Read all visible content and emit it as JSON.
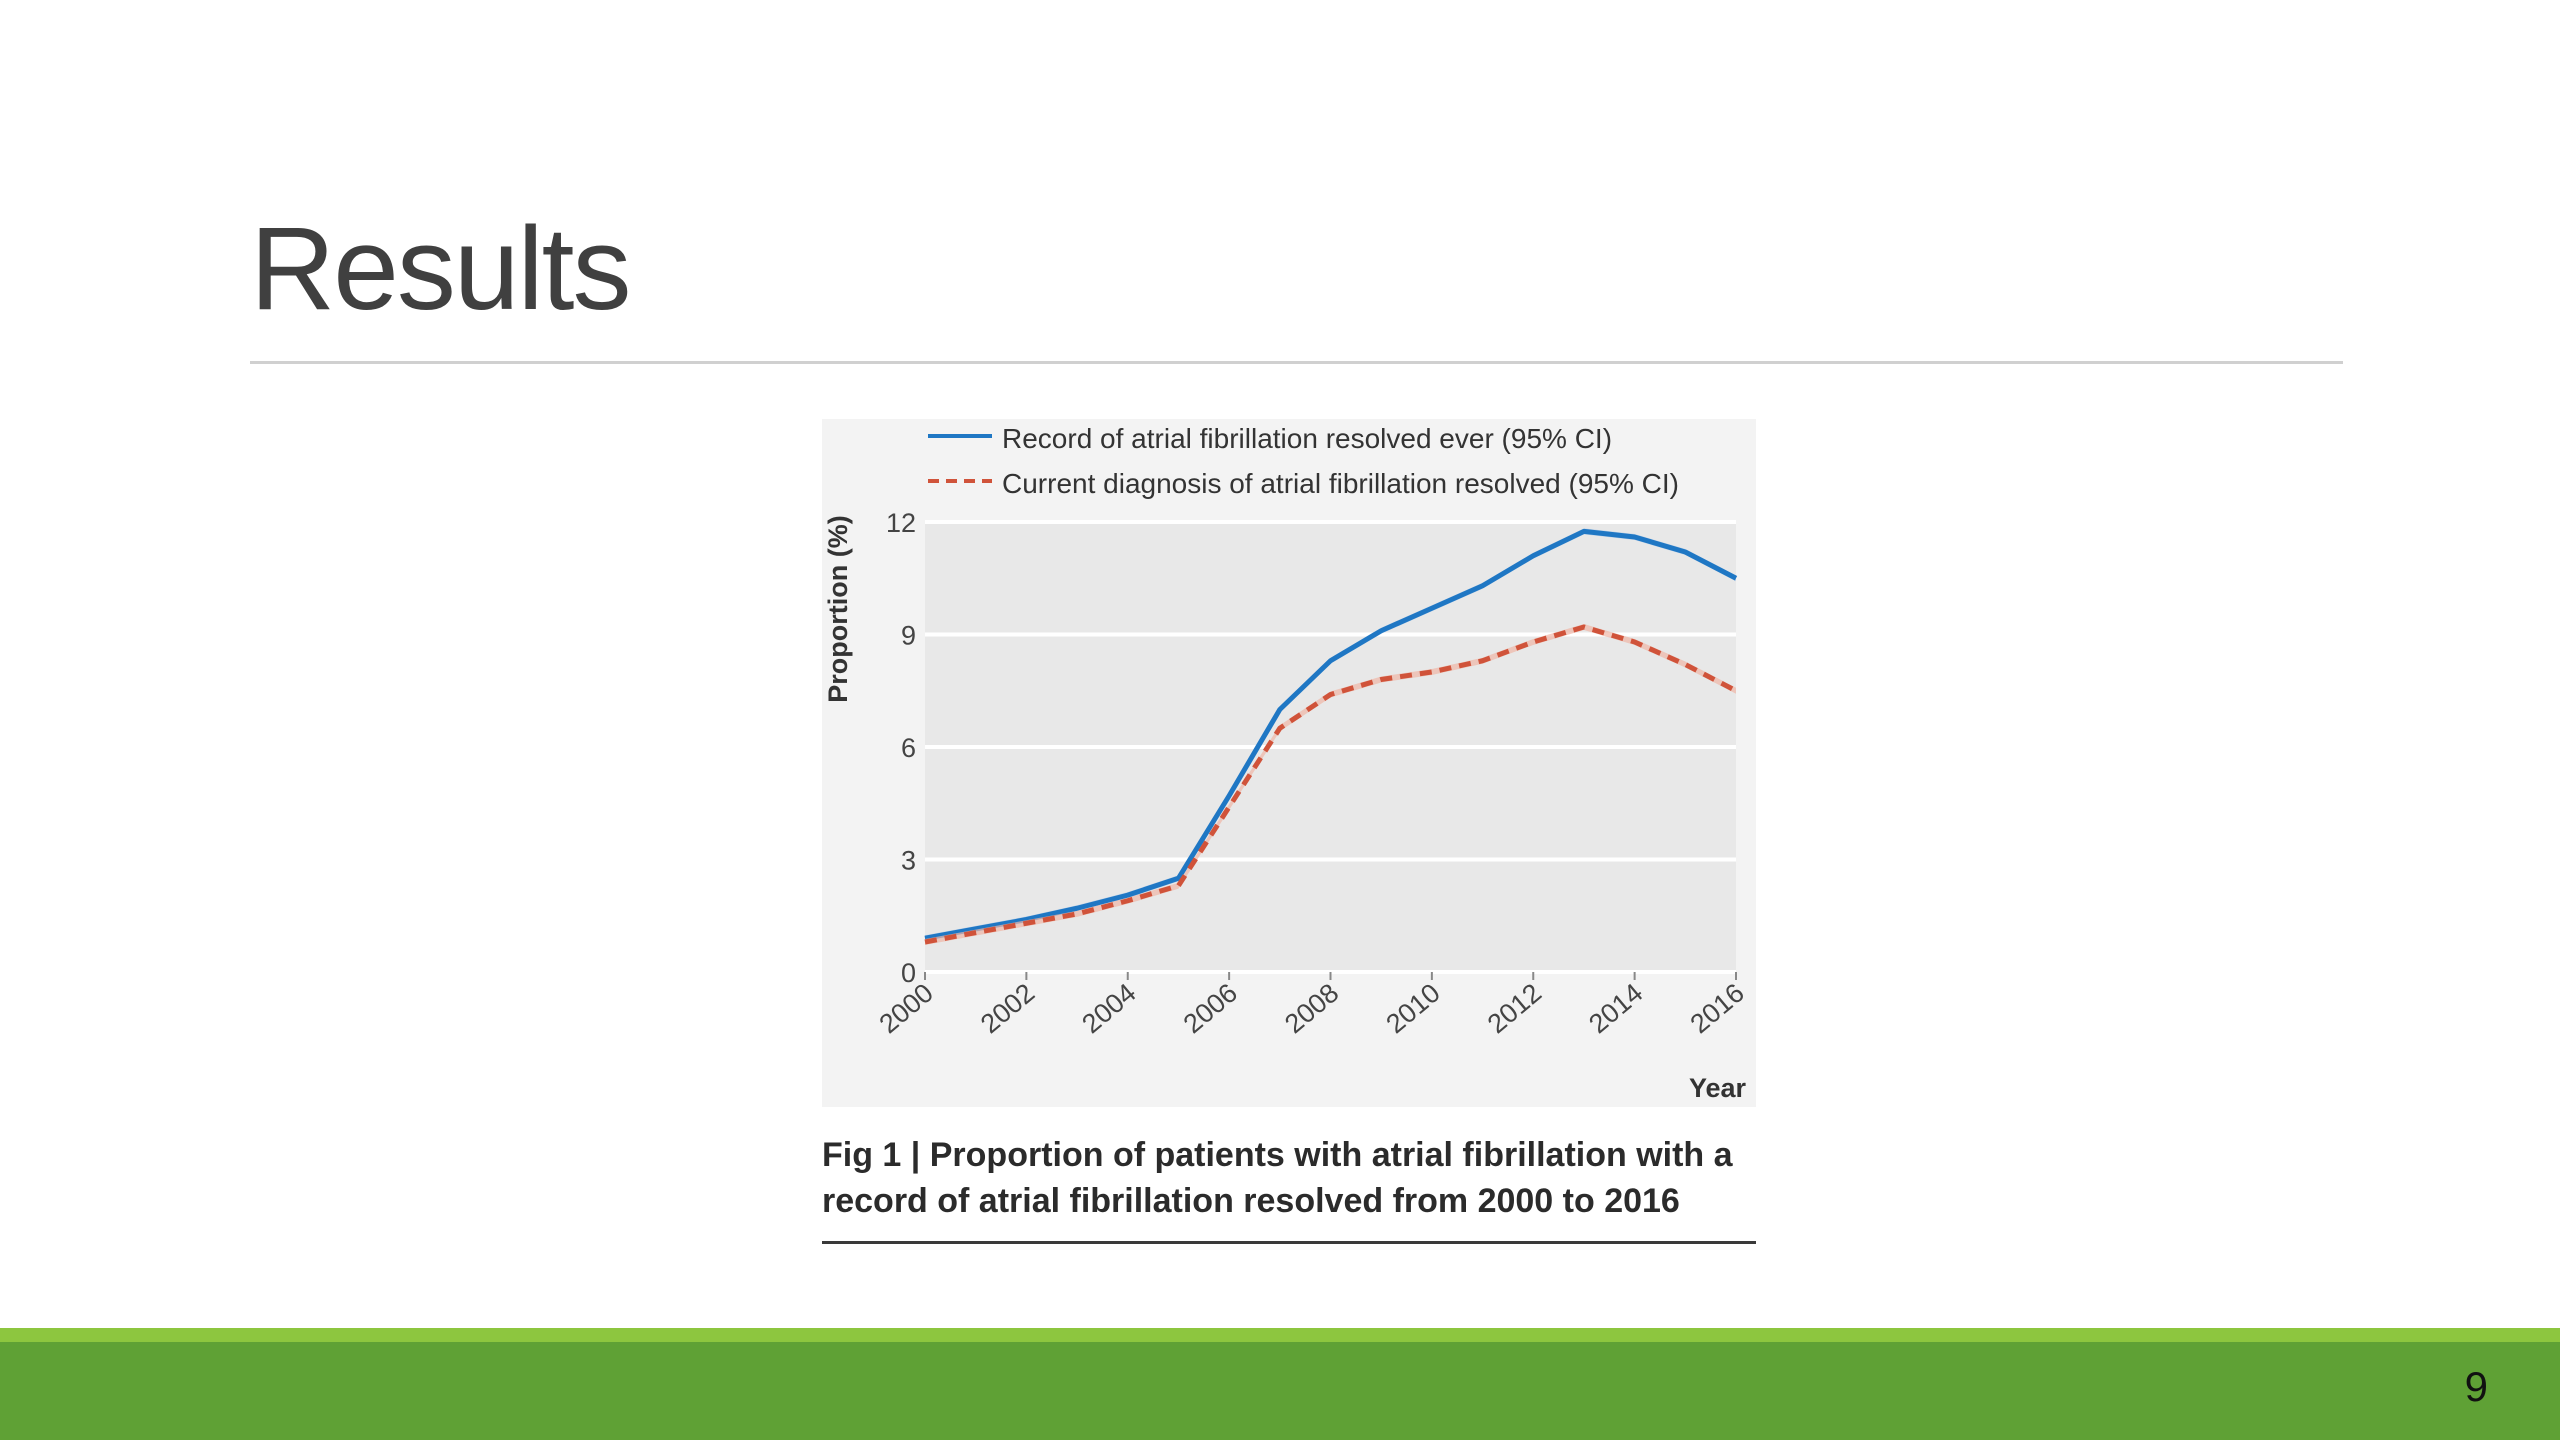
{
  "slide": {
    "title": "Results",
    "page_number": "9",
    "caption_line1": "Fig 1 | Proportion of patients with atrial fibrillation with a",
    "caption_line2": "record of atrial fibrillation resolved from 2000 to 2016"
  },
  "colors": {
    "series_ever": "#1f77c4",
    "series_current": "#d0533a",
    "band_ever": "#a9c8e8",
    "band_current": "#f0b6a6",
    "plot_background": "#e8e8e8",
    "figure_background": "#f3f3f3",
    "footer_light": "#8dc63f",
    "footer_dark": "#5fa135"
  },
  "chart_data": {
    "type": "line",
    "xlabel": "Year",
    "ylabel": "Proportion (%)",
    "xlim": [
      2000,
      2016
    ],
    "ylim": [
      0,
      12
    ],
    "x_ticks": [
      "2000",
      "2002",
      "2004",
      "2006",
      "2008",
      "2010",
      "2012",
      "2014",
      "2016"
    ],
    "y_ticks": [
      "0",
      "3",
      "6",
      "9",
      "12"
    ],
    "grid": "horizontal",
    "legend_position": "top",
    "x": [
      2000,
      2001,
      2002,
      2003,
      2004,
      2005,
      2006,
      2007,
      2008,
      2009,
      2010,
      2011,
      2012,
      2013,
      2014,
      2015,
      2016
    ],
    "series": [
      {
        "name": "Record of atrial fibrillation resolved ever (95% CI)",
        "style": "solid",
        "values": [
          0.9,
          1.15,
          1.4,
          1.7,
          2.05,
          2.5,
          4.7,
          7.0,
          8.3,
          9.1,
          9.7,
          10.3,
          11.1,
          11.75,
          11.6,
          11.2,
          10.5
        ]
      },
      {
        "name": "Current diagnosis of atrial fibrillation resolved (95% CI)",
        "style": "dashed",
        "values": [
          0.8,
          1.05,
          1.3,
          1.55,
          1.9,
          2.3,
          4.4,
          6.5,
          7.4,
          7.8,
          8.0,
          8.3,
          8.8,
          9.2,
          8.8,
          8.2,
          7.5
        ]
      }
    ]
  }
}
